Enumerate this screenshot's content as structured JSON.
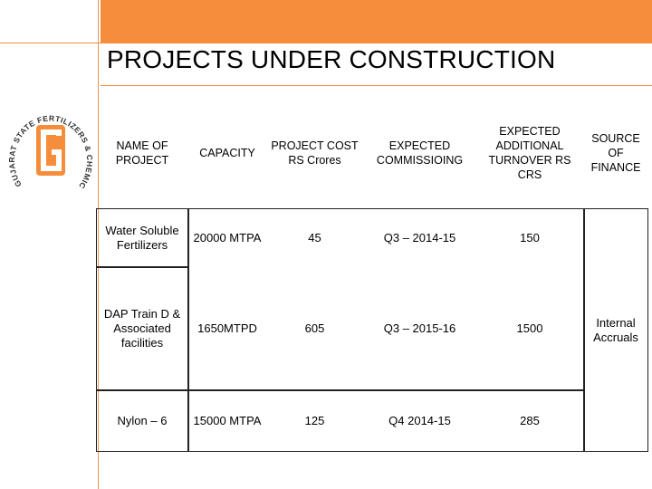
{
  "title": "PROJECTS UNDER CONSTRUCTION",
  "logo": {
    "letter": "G",
    "ring_text": "GUJARAT STATE FERTILIZERS & CHEMICALS LIMITED",
    "color": "#f58d3b"
  },
  "table": {
    "headers": {
      "name": "NAME OF PROJECT",
      "capacity": "CAPACITY",
      "cost": "PROJECT COST RS Crores",
      "commissioning": "EXPECTED COMMISSIOING",
      "turnover": "EXPECTED ADDITIONAL TURNOVER RS CRS",
      "finance": "SOURCE OF FINANCE"
    },
    "rows": [
      {
        "name": "Water Soluble Fertilizers",
        "capacity": "20000 MTPA",
        "cost": "45",
        "commissioning": "Q3 – 2014-15",
        "turnover": "150"
      },
      {
        "name": "DAP Train D & Associated facilities",
        "capacity": "1650MTPD",
        "cost": "605",
        "commissioning": "Q3 – 2015-16",
        "turnover": "1500"
      },
      {
        "name": "Nylon – 6",
        "capacity": "15000 MTPA",
        "cost": "125",
        "commissioning": "Q4 2014-15",
        "turnover": "285"
      }
    ],
    "finance_value": "Internal Accruals"
  },
  "colors": {
    "accent": "#f58d3b"
  }
}
